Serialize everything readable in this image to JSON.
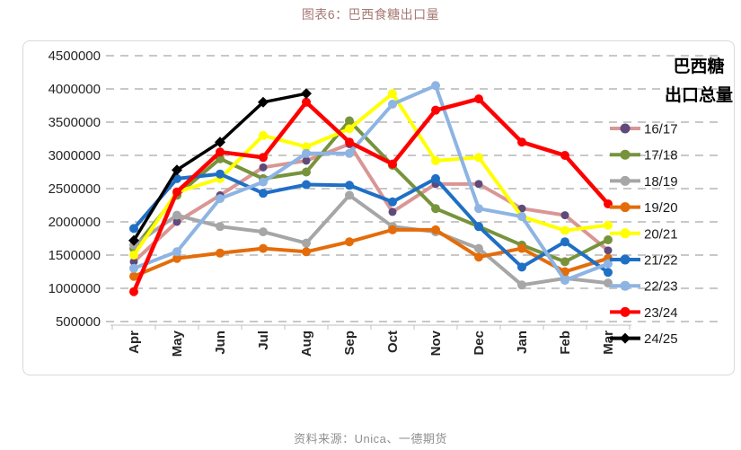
{
  "title": "图表6：巴西食糖出口量",
  "source": "资料来源：Unica、一德期货",
  "chart_data": {
    "type": "line",
    "title": "图表6：巴西食糖出口量",
    "legend_title_line1": "巴西糖",
    "legend_title_line2": "出口总量",
    "legend_position": "right",
    "grid": "horizontal-dashed",
    "categories": [
      "Apr",
      "May",
      "Jun",
      "Jul",
      "Aug",
      "Sep",
      "Oct",
      "Nov",
      "Dec",
      "Jan",
      "Feb",
      "Mar"
    ],
    "ylim": [
      500000,
      4500000
    ],
    "ytick_step": 500000,
    "yticks": [
      500000,
      1000000,
      1500000,
      2000000,
      2500000,
      3000000,
      3500000,
      4000000,
      4500000
    ],
    "series": [
      {
        "name": "16/17",
        "color": "#D99694",
        "marker": "circle",
        "marker_color": "#604A7B",
        "values": [
          1400000,
          2000000,
          2400000,
          2820000,
          2920000,
          3170000,
          2150000,
          2570000,
          2570000,
          2200000,
          2100000,
          1570000
        ]
      },
      {
        "name": "17/18",
        "color": "#77933C",
        "marker": "circle",
        "values": [
          1600000,
          2400000,
          2950000,
          2650000,
          2750000,
          3520000,
          2850000,
          2200000,
          1930000,
          1650000,
          1400000,
          1730000
        ]
      },
      {
        "name": "18/19",
        "color": "#A6A6A6",
        "marker": "circle",
        "values": [
          1650000,
          2100000,
          1930000,
          1850000,
          1680000,
          2400000,
          1930000,
          1850000,
          1600000,
          1050000,
          1150000,
          1080000
        ]
      },
      {
        "name": "19/20",
        "color": "#E46C0A",
        "marker": "circle",
        "values": [
          1180000,
          1450000,
          1530000,
          1600000,
          1550000,
          1700000,
          1880000,
          1880000,
          1470000,
          1600000,
          1250000,
          1450000
        ]
      },
      {
        "name": "20/21",
        "color": "#FFFF00",
        "marker": "circle",
        "values": [
          1500000,
          2450000,
          2650000,
          3300000,
          3130000,
          3400000,
          3930000,
          2920000,
          2970000,
          2080000,
          1870000,
          1950000
        ]
      },
      {
        "name": "21/22",
        "color": "#1F6FC5",
        "marker": "circle",
        "values": [
          1900000,
          2650000,
          2720000,
          2430000,
          2560000,
          2550000,
          2300000,
          2650000,
          1930000,
          1320000,
          1700000,
          1240000
        ]
      },
      {
        "name": "22/23",
        "color": "#8DB4E2",
        "marker": "circle",
        "values": [
          1300000,
          1550000,
          2350000,
          2600000,
          3030000,
          3030000,
          3770000,
          4050000,
          2200000,
          2080000,
          1120000,
          1370000
        ]
      },
      {
        "name": "23/24",
        "color": "#FF0000",
        "marker": "circle",
        "values": [
          950000,
          2450000,
          3050000,
          2970000,
          3800000,
          3200000,
          2870000,
          3680000,
          3850000,
          3200000,
          3000000,
          2270000
        ]
      },
      {
        "name": "24/25",
        "color": "#000000",
        "marker": "diamond",
        "values": [
          1720000,
          2780000,
          3200000,
          3800000,
          3930000,
          null,
          null,
          null,
          null,
          null,
          null,
          null
        ]
      }
    ]
  },
  "style": {
    "grid_color": "#C8C8C8",
    "axis_color": "#BFBFBF",
    "tick_label_color": "#262626",
    "legend_text_color": "#1A1A1A",
    "title_color": "#A57873",
    "source_color": "#8F8F8F"
  }
}
